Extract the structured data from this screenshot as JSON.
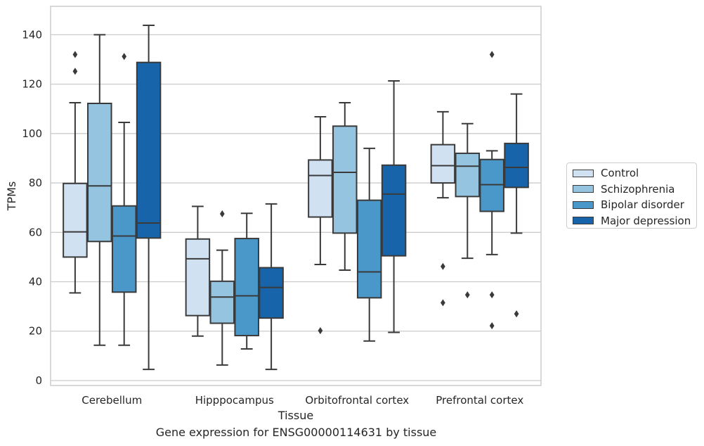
{
  "chart_data": {
    "type": "box",
    "title": "Gene expression for ENSG00000114631 by tissue",
    "xlabel": "Tissue",
    "ylabel": "TPMs",
    "ylim": [
      -2,
      151.5
    ],
    "yticks": [
      0,
      20,
      40,
      60,
      80,
      100,
      120,
      140
    ],
    "grid": "horizontal",
    "legend_position": "right",
    "categories": [
      "Cerebellum",
      "Hipppocampus",
      "Orbitofrontal cortex",
      "Prefrontal cortex"
    ],
    "series": [
      {
        "name": "Control",
        "color": "#d0e1f2",
        "boxes": [
          {
            "whisker_low": 35.5,
            "q1": 50.0,
            "median": 60.2,
            "q3": 79.8,
            "whisker_high": 112.5,
            "outliers": [
              125.2,
              132.0
            ]
          },
          {
            "whisker_low": 18.0,
            "q1": 26.3,
            "median": 49.3,
            "q3": 57.3,
            "whisker_high": 70.5,
            "outliers": []
          },
          {
            "whisker_low": 47.0,
            "q1": 66.2,
            "median": 83.0,
            "q3": 89.3,
            "whisker_high": 106.8,
            "outliers": [
              20.2
            ]
          },
          {
            "whisker_low": 74.0,
            "q1": 80.0,
            "median": 87.0,
            "q3": 95.5,
            "whisker_high": 108.8,
            "outliers": [
              31.5,
              46.2
            ]
          }
        ]
      },
      {
        "name": "Schizophrenia",
        "color": "#94c4df",
        "boxes": [
          {
            "whisker_low": 14.3,
            "q1": 56.3,
            "median": 78.8,
            "q3": 112.2,
            "whisker_high": 140.0,
            "outliers": []
          },
          {
            "whisker_low": 6.3,
            "q1": 23.2,
            "median": 33.8,
            "q3": 40.2,
            "whisker_high": 52.8,
            "outliers": [
              67.5
            ]
          },
          {
            "whisker_low": 44.7,
            "q1": 59.7,
            "median": 84.3,
            "q3": 103.0,
            "whisker_high": 112.5,
            "outliers": []
          },
          {
            "whisker_low": 49.5,
            "q1": 74.5,
            "median": 86.8,
            "q3": 92.0,
            "whisker_high": 104.0,
            "outliers": [
              34.7
            ]
          }
        ]
      },
      {
        "name": "Bipolar disorder",
        "color": "#4a98c9",
        "boxes": [
          {
            "whisker_low": 14.3,
            "q1": 35.8,
            "median": 58.5,
            "q3": 70.7,
            "whisker_high": 104.5,
            "outliers": [
              131.2
            ]
          },
          {
            "whisker_low": 12.8,
            "q1": 18.2,
            "median": 34.3,
            "q3": 57.5,
            "whisker_high": 67.7,
            "outliers": []
          },
          {
            "whisker_low": 16.0,
            "q1": 33.5,
            "median": 44.0,
            "q3": 73.0,
            "whisker_high": 94.0,
            "outliers": []
          },
          {
            "whisker_low": 51.0,
            "q1": 68.5,
            "median": 79.3,
            "q3": 89.5,
            "whisker_high": 93.0,
            "outliers": [
              22.2,
              34.7,
              132.0
            ]
          }
        ]
      },
      {
        "name": "Major depression",
        "color": "#1764ab",
        "boxes": [
          {
            "whisker_low": 4.5,
            "q1": 57.7,
            "median": 63.8,
            "q3": 128.8,
            "whisker_high": 143.8,
            "outliers": []
          },
          {
            "whisker_low": 4.5,
            "q1": 25.3,
            "median": 37.7,
            "q3": 45.7,
            "whisker_high": 71.5,
            "outliers": []
          },
          {
            "whisker_low": 19.5,
            "q1": 50.5,
            "median": 75.5,
            "q3": 87.2,
            "whisker_high": 121.3,
            "outliers": []
          },
          {
            "whisker_low": 59.7,
            "q1": 78.2,
            "median": 86.3,
            "q3": 96.0,
            "whisker_high": 116.0,
            "outliers": [
              27.0
            ]
          }
        ]
      }
    ]
  }
}
